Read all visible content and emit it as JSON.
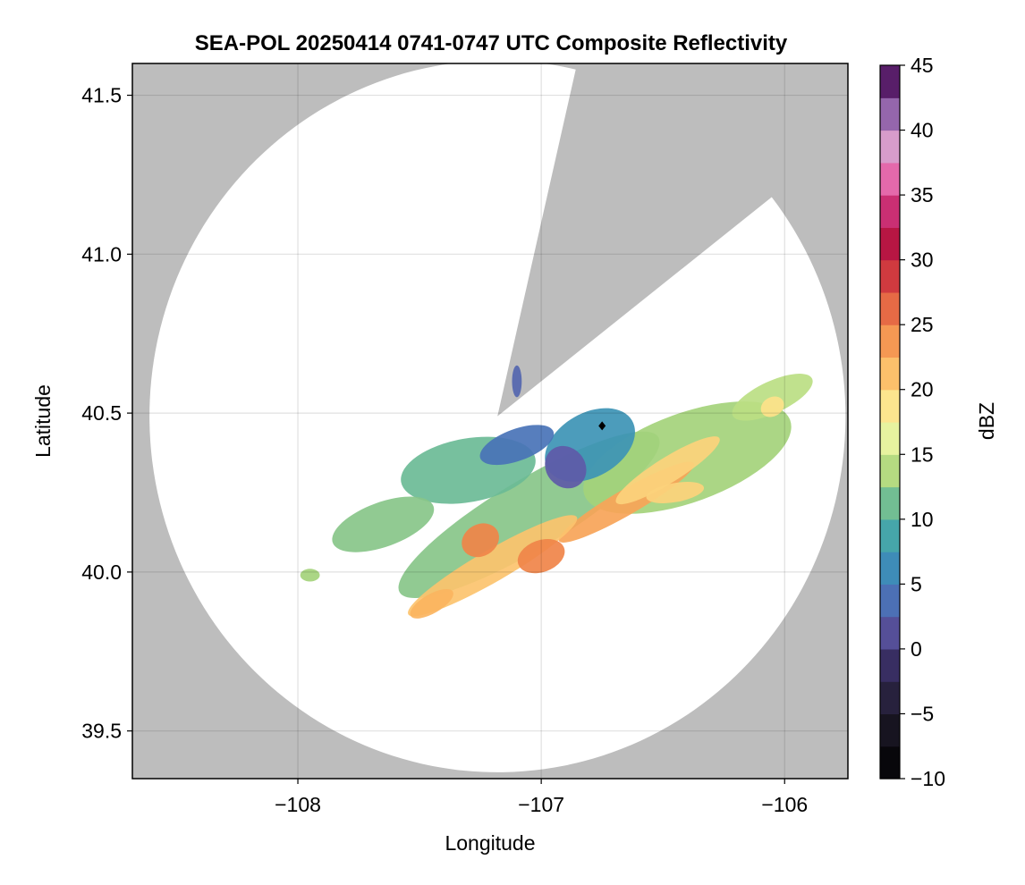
{
  "chart_data": {
    "type": "heatmap",
    "title": "SEA-POL 20250414 0741-0747 UTC Composite Reflectivity",
    "xlabel": "Longitude",
    "ylabel": "Latitude",
    "xlim": [
      -108.68,
      -105.74
    ],
    "ylim": [
      39.35,
      41.6
    ],
    "xticks": [
      -108,
      -107,
      -106
    ],
    "xtick_labels": [
      "−108",
      "−107",
      "−106"
    ],
    "yticks": [
      39.5,
      40.0,
      40.5,
      41.0,
      41.5
    ],
    "ytick_labels": [
      "39.5",
      "40.0",
      "40.5",
      "41.0",
      "41.5"
    ],
    "grid": true,
    "background_color": "#bdbdbd",
    "radar_coverage": {
      "center": [
        -107.18,
        40.49
      ],
      "range_deg_lat": 1.12,
      "range_deg_lon": 1.43,
      "blocked_sector_bearing_deg": [
        13,
        52
      ],
      "coverage_color": "#ffffff"
    },
    "radar_site_marker": {
      "lon": -106.75,
      "lat": 40.46,
      "color": "#000000"
    },
    "colorbar": {
      "label": "dBZ",
      "range": [
        -10,
        45
      ],
      "step": 2.5,
      "ticks": [
        -10,
        -5,
        0,
        5,
        10,
        15,
        20,
        25,
        30,
        35,
        40,
        45
      ],
      "tick_labels": [
        "−10",
        "−5",
        "0",
        "5",
        "10",
        "15",
        "20",
        "25",
        "30",
        "35",
        "40",
        "45"
      ],
      "colormap": "Spectral reversed with light-purple / dark top",
      "stops": [
        {
          "v": -10,
          "c": "#000000"
        },
        {
          "v": -5,
          "c": "#1e1a2a"
        },
        {
          "v": -1,
          "c": "#3a2f66"
        },
        {
          "v": 2,
          "c": "#5e5aa8"
        },
        {
          "v": 5,
          "c": "#3f7fbe"
        },
        {
          "v": 8,
          "c": "#3c9fb0"
        },
        {
          "v": 10.5,
          "c": "#5db59d"
        },
        {
          "v": 13,
          "c": "#a4d27b"
        },
        {
          "v": 15,
          "c": "#d2ea8a"
        },
        {
          "v": 17,
          "c": "#f4f8ab"
        },
        {
          "v": 19,
          "c": "#fde28a"
        },
        {
          "v": 22,
          "c": "#fbb460"
        },
        {
          "v": 25,
          "c": "#f08449"
        },
        {
          "v": 28,
          "c": "#d9463f"
        },
        {
          "v": 31,
          "c": "#b5153f"
        },
        {
          "v": 33,
          "c": "#c21f62"
        },
        {
          "v": 36,
          "c": "#e360a6"
        },
        {
          "v": 38,
          "c": "#eba8d0"
        },
        {
          "v": 40.5,
          "c": "#a77fc0"
        },
        {
          "v": 43,
          "c": "#6a2a7e"
        },
        {
          "v": 45,
          "c": "#3b0a45"
        }
      ]
    },
    "echo_regions": [
      {
        "lon": -107.05,
        "lat": 40.18,
        "rlon": 0.62,
        "rlat": 0.11,
        "rot": 31,
        "dbz": 12
      },
      {
        "lon": -106.4,
        "lat": 40.36,
        "rlon": 0.45,
        "rlat": 0.14,
        "rot": 20,
        "dbz": 13
      },
      {
        "lon": -106.05,
        "lat": 40.55,
        "rlon": 0.18,
        "rlat": 0.05,
        "rot": 25,
        "dbz": 14
      },
      {
        "lon": -107.3,
        "lat": 40.32,
        "rlon": 0.28,
        "rlat": 0.1,
        "rot": 10,
        "dbz": 11
      },
      {
        "lon": -107.65,
        "lat": 40.15,
        "rlon": 0.22,
        "rlat": 0.07,
        "rot": 20,
        "dbz": 12
      },
      {
        "lon": -106.8,
        "lat": 40.4,
        "rlon": 0.2,
        "rlat": 0.1,
        "rot": 30,
        "dbz": 7
      },
      {
        "lon": -106.9,
        "lat": 40.33,
        "rlon": 0.08,
        "rlat": 0.07,
        "rot": 40,
        "dbz": 2
      },
      {
        "lon": -107.1,
        "lat": 40.4,
        "rlon": 0.16,
        "rlat": 0.05,
        "rot": 20,
        "dbz": 4
      },
      {
        "lon": -106.65,
        "lat": 40.22,
        "rlon": 0.32,
        "rlat": 0.04,
        "rot": 30,
        "dbz": 23
      },
      {
        "lon": -106.48,
        "lat": 40.32,
        "rlon": 0.25,
        "rlat": 0.04,
        "rot": 32,
        "dbz": 20
      },
      {
        "lon": -107.2,
        "lat": 40.02,
        "rlon": 0.4,
        "rlat": 0.05,
        "rot": 30,
        "dbz": 21
      },
      {
        "lon": -107.0,
        "lat": 40.05,
        "rlon": 0.1,
        "rlat": 0.05,
        "rot": 20,
        "dbz": 25
      },
      {
        "lon": -107.25,
        "lat": 40.1,
        "rlon": 0.08,
        "rlat": 0.05,
        "rot": 30,
        "dbz": 25
      },
      {
        "lon": -107.45,
        "lat": 39.9,
        "rlon": 0.1,
        "rlat": 0.03,
        "rot": 30,
        "dbz": 22
      },
      {
        "lon": -106.45,
        "lat": 40.25,
        "rlon": 0.12,
        "rlat": 0.03,
        "rot": 10,
        "dbz": 20
      },
      {
        "lon": -106.05,
        "lat": 40.52,
        "rlon": 0.05,
        "rlat": 0.03,
        "rot": 30,
        "dbz": 19
      },
      {
        "lon": -107.95,
        "lat": 39.99,
        "rlon": 0.04,
        "rlat": 0.02,
        "rot": 0,
        "dbz": 13
      },
      {
        "lon": -107.1,
        "lat": 40.6,
        "rlon": 0.02,
        "rlat": 0.05,
        "rot": 0,
        "dbz": 3
      }
    ]
  }
}
